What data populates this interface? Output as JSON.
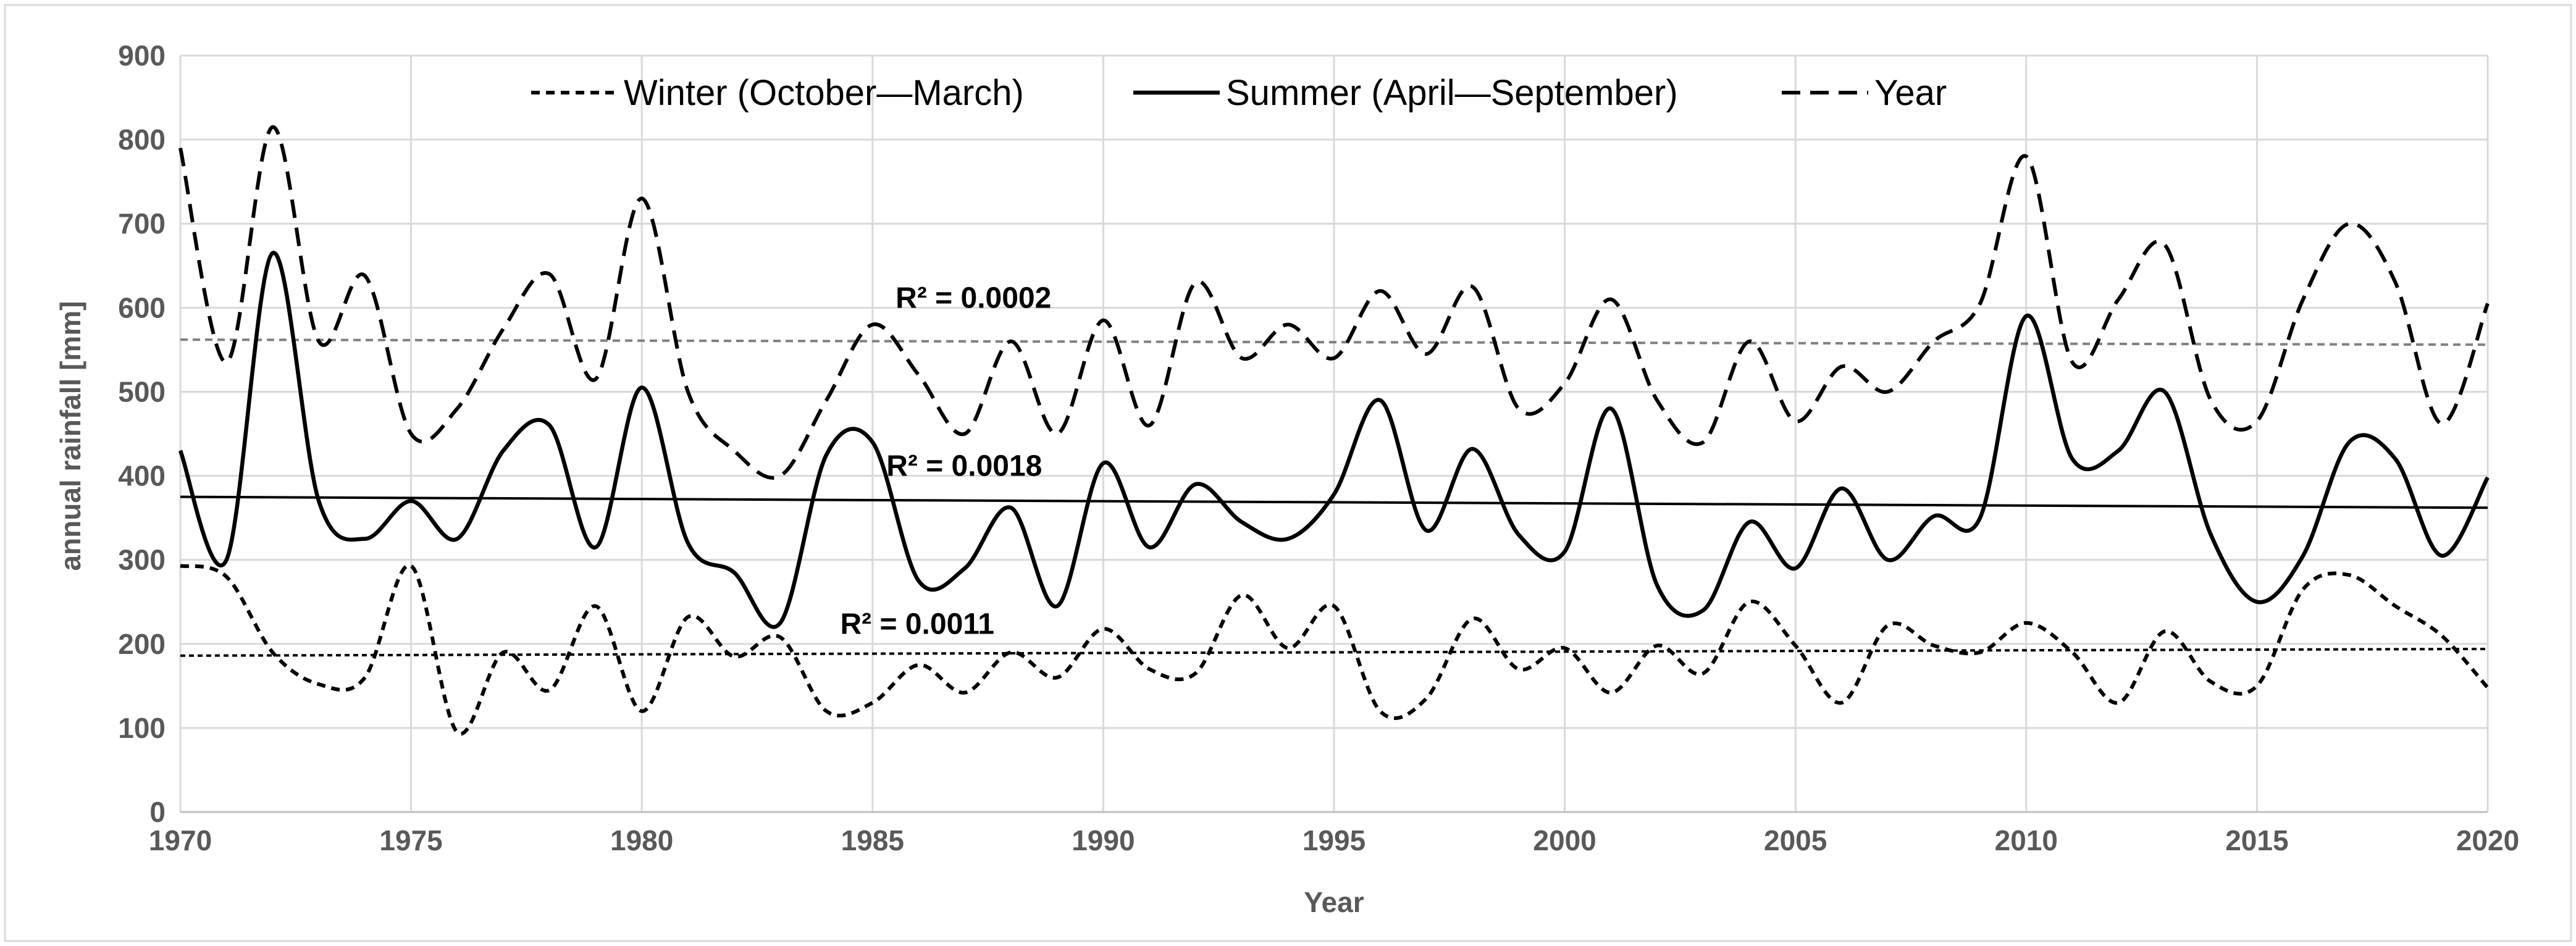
{
  "chart_data": {
    "type": "line",
    "title": "",
    "xlabel": "Year",
    "ylabel": "annual rainfall [mm]",
    "xlim": [
      1970,
      2020
    ],
    "ylim": [
      0,
      900
    ],
    "grid": true,
    "legend_position": "top",
    "x_ticks": [
      "1970",
      "1975",
      "1980",
      "1985",
      "1990",
      "1995",
      "2000",
      "2005",
      "2010",
      "2015",
      "2020"
    ],
    "y_ticks": [
      "0",
      "100",
      "200",
      "300",
      "400",
      "500",
      "600",
      "700",
      "800",
      "900"
    ],
    "x": [
      1970,
      1971,
      1972,
      1973,
      1974,
      1975,
      1976,
      1977,
      1978,
      1979,
      1980,
      1981,
      1982,
      1983,
      1984,
      1985,
      1986,
      1987,
      1988,
      1989,
      1990,
      1991,
      1992,
      1993,
      1994,
      1995,
      1996,
      1997,
      1998,
      1999,
      2000,
      2001,
      2002,
      2003,
      2004,
      2005,
      2006,
      2007,
      2008,
      2009,
      2010,
      2011,
      2012,
      2013,
      2014,
      2015,
      2016,
      2017,
      2018,
      2019,
      2020
    ],
    "series": [
      {
        "name": "Winter (October—March)",
        "style": "dashed",
        "values": [
          293,
          280,
          190,
          152,
          160,
          293,
          95,
          190,
          145,
          245,
          120,
          232,
          185,
          208,
          120,
          130,
          175,
          142,
          190,
          160,
          218,
          170,
          165,
          258,
          195,
          245,
          120,
          135,
          230,
          170,
          195,
          142,
          198,
          165,
          250,
          198,
          130,
          222,
          198,
          190,
          225,
          190,
          130,
          215,
          155,
          150,
          265,
          282,
          245,
          210,
          148
        ]
      },
      {
        "name": "Summer (April—September)",
        "style": "solid",
        "values": [
          430,
          300,
          665,
          370,
          325,
          370,
          325,
          430,
          460,
          315,
          505,
          320,
          285,
          225,
          425,
          440,
          275,
          290,
          362,
          245,
          415,
          315,
          390,
          345,
          325,
          378,
          490,
          335,
          432,
          330,
          310,
          480,
          270,
          240,
          345,
          290,
          385,
          300,
          352,
          350,
          590,
          420,
          430,
          500,
          330,
          250,
          305,
          440,
          420,
          305,
          398
        ]
      },
      {
        "name": "Year",
        "style": "long-dashed",
        "values": [
          790,
          535,
          815,
          560,
          638,
          450,
          480,
          575,
          640,
          515,
          730,
          500,
          430,
          400,
          490,
          580,
          520,
          450,
          560,
          450,
          585,
          460,
          630,
          540,
          580,
          540,
          620,
          545,
          625,
          480,
          510,
          610,
          490,
          440,
          560,
          465,
          530,
          500,
          560,
          605,
          780,
          535,
          610,
          675,
          490,
          465,
          610,
          700,
          630,
          462,
          605
        ]
      }
    ],
    "trendlines": [
      {
        "series": "Year",
        "start": 562,
        "end": 556,
        "r2_label": "R² = 0.0002",
        "label_x": 1985.5,
        "label_y": 600
      },
      {
        "series": "Summer (April—September)",
        "start": 375,
        "end": 362,
        "r2_label": "R² = 0.0018",
        "label_x": 1985.3,
        "label_y": 400
      },
      {
        "series": "Winter (October—March)",
        "start": 186,
        "end": 194,
        "r2_label": "R² = 0.0011",
        "label_x": 1984.3,
        "label_y": 212
      }
    ]
  }
}
